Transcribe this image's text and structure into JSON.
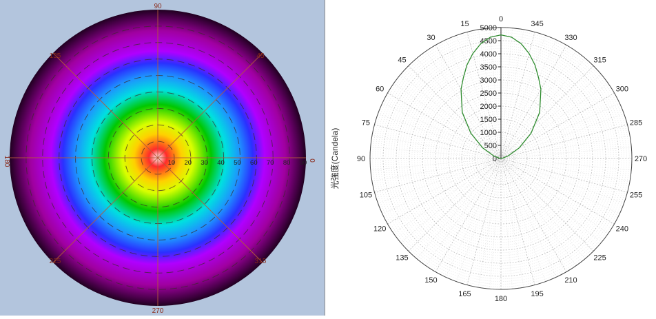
{
  "chart_data": [
    {
      "type": "heatmap",
      "description_kind": "polar intensity distribution",
      "angle_labels": [
        "0",
        "45",
        "90",
        "135",
        "180",
        "225",
        "270",
        "315"
      ],
      "radius_labels": [
        "10",
        "20",
        "30",
        "40",
        "50",
        "60",
        "70",
        "80",
        "90"
      ],
      "radius_max": 90,
      "colors": [
        "#ffffff",
        "#ff2a2a",
        "#ffd000",
        "#d8ff00",
        "#00c800",
        "#00e0e0",
        "#1f8fff",
        "#2a30ff",
        "#b000ff",
        "#a000a0",
        "#200020"
      ],
      "grid_color": "#b45a3a"
    },
    {
      "type": "line",
      "ylabel": "光強度(Candela)",
      "theta_labels": [
        "0",
        "15",
        "30",
        "45",
        "60",
        "75",
        "90",
        "105",
        "120",
        "135",
        "150",
        "165",
        "180",
        "195",
        "210",
        "225",
        "240",
        "255",
        "270",
        "285",
        "300",
        "315",
        "330",
        "345"
      ],
      "r_ticks": [
        "0",
        "500",
        "1000",
        "1500",
        "2000",
        "2500",
        "3000",
        "3500",
        "4000",
        "4500",
        "5000"
      ],
      "r_range": [
        0,
        5000
      ],
      "series": [
        {
          "color": "#2e8b2e",
          "theta": [
            -90,
            -80,
            -70,
            -60,
            -50,
            -40,
            -30,
            -25,
            -20,
            -15,
            -10,
            -5,
            0,
            5,
            10,
            15,
            20,
            25,
            30,
            40,
            50,
            60,
            70,
            80,
            90
          ],
          "r": [
            0,
            60,
            300,
            800,
            1500,
            2300,
            3050,
            3400,
            3800,
            4150,
            4450,
            4650,
            4720,
            4650,
            4450,
            4150,
            3800,
            3400,
            3050,
            2300,
            1500,
            800,
            300,
            60,
            0
          ]
        }
      ]
    }
  ]
}
